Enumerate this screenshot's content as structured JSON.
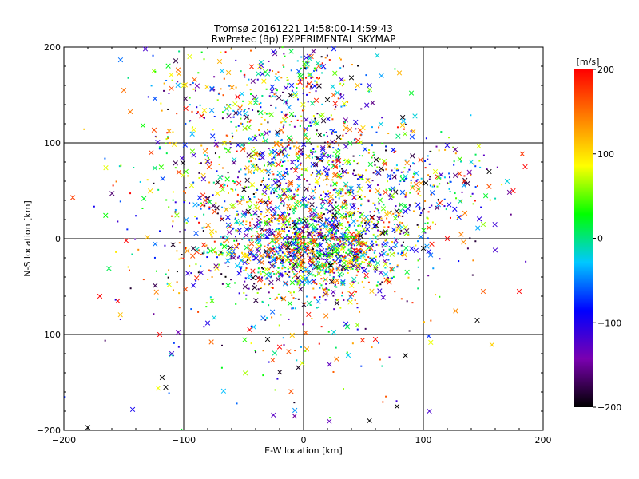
{
  "chart_data": {
    "type": "scatter",
    "title": "Tromsø 20161221 14:58:00-14:59:43",
    "subtitle": "RwPretec (8p) EXPERIMENTAL SKYMAP",
    "xlabel": "E-W location [km]",
    "ylabel": "N-S location [km]",
    "xlim": [
      -200,
      200
    ],
    "ylim": [
      -200,
      200
    ],
    "x_ticks": [
      "−200",
      "−100",
      "0",
      "100",
      "200"
    ],
    "y_ticks": [
      "−200",
      "−100",
      "0",
      "100",
      "200"
    ],
    "grid": true,
    "grid_lines": [
      -100,
      0,
      100
    ],
    "marker_types": [
      "x",
      "dot"
    ],
    "colorbar": {
      "label": "[m/s]",
      "range": [
        -200,
        200
      ],
      "ticks": [
        "−200",
        "−100",
        "0",
        "100",
        "200"
      ],
      "colors": [
        "#000000",
        "#7a00b0",
        "#0000ff",
        "#00c8ff",
        "#00ff00",
        "#ffff00",
        "#ff8000",
        "#ff0000"
      ]
    },
    "point_count_estimate": 3000,
    "points": [
      [
        -132,
        198,
        "x",
        -120
      ],
      [
        -104,
        172,
        "x",
        120
      ],
      [
        -95,
        190,
        "x",
        80
      ],
      [
        -70,
        185,
        "x",
        120
      ],
      [
        -25,
        195,
        "x",
        -100
      ],
      [
        5,
        188,
        "x",
        -10
      ],
      [
        12,
        183,
        "x",
        -10
      ],
      [
        -30,
        172,
        "x",
        0
      ],
      [
        -68,
        175,
        "x",
        -30
      ],
      [
        -100,
        160,
        "x",
        80
      ],
      [
        -125,
        175,
        "x",
        60
      ],
      [
        -150,
        155,
        "x",
        150
      ],
      [
        -85,
        128,
        "x",
        200
      ],
      [
        -40,
        142,
        "x",
        10
      ],
      [
        -10,
        160,
        "x",
        -80
      ],
      [
        20,
        145,
        "x",
        -200
      ],
      [
        40,
        168,
        "x",
        -200
      ],
      [
        65,
        170,
        "x",
        -40
      ],
      [
        80,
        173,
        "x",
        120
      ],
      [
        93,
        128,
        "x",
        -20
      ],
      [
        55,
        160,
        "x",
        -100
      ],
      [
        90,
        152,
        "x",
        20
      ],
      [
        -55,
        148,
        "x",
        200
      ],
      [
        -10,
        130,
        "x",
        30
      ],
      [
        25,
        150,
        "x",
        160
      ],
      [
        85,
        65,
        "x",
        -20
      ],
      [
        102,
        58,
        "x",
        -200
      ],
      [
        110,
        70,
        "x",
        80
      ],
      [
        140,
        80,
        "x",
        -20
      ],
      [
        155,
        70,
        "x",
        -200
      ],
      [
        170,
        60,
        "x",
        -20
      ],
      [
        185,
        75,
        "x",
        200
      ],
      [
        175,
        50,
        "x",
        200
      ],
      [
        150,
        15,
        "x",
        60
      ],
      [
        120,
        0,
        "x",
        200
      ],
      [
        100,
        -10,
        "x",
        -200
      ],
      [
        145,
        -85,
        "x",
        -200
      ],
      [
        150,
        -55,
        "x",
        160
      ],
      [
        180,
        -55,
        "x",
        200
      ],
      [
        160,
        -12,
        "x",
        -120
      ],
      [
        -170,
        -60,
        "x",
        200
      ],
      [
        -155,
        -65,
        "x",
        200
      ],
      [
        -148,
        -2,
        "x",
        200
      ],
      [
        -165,
        74,
        "x",
        80
      ],
      [
        -112,
        -48,
        "x",
        80
      ],
      [
        -120,
        -100,
        "x",
        200
      ],
      [
        -110,
        -120,
        "x",
        -120
      ],
      [
        -118,
        -145,
        "x",
        -200
      ],
      [
        -115,
        -155,
        "x",
        -200
      ],
      [
        -30,
        -105,
        "x",
        -200
      ],
      [
        -20,
        -113,
        "x",
        200
      ],
      [
        60,
        -105,
        "x",
        200
      ],
      [
        85,
        -122,
        "x",
        -200
      ],
      [
        78,
        -175,
        "x",
        -200
      ],
      [
        105,
        -180,
        "x",
        -120
      ],
      [
        55,
        -190,
        "x",
        -200
      ],
      [
        -180,
        -197,
        "x",
        -200
      ],
      [
        -80,
        -88,
        "x",
        -100
      ],
      [
        45,
        -90,
        "x",
        60
      ],
      [
        -45,
        -95,
        "x",
        200
      ]
    ],
    "clusters": [
      {
        "cx": 5,
        "cy": -15,
        "sx": 38,
        "sy": 22,
        "n": 1100
      },
      {
        "cx": 10,
        "cy": 45,
        "sx": 55,
        "sy": 40,
        "n": 1100
      },
      {
        "cx": -20,
        "cy": 115,
        "sx": 40,
        "sy": 35,
        "n": 250
      },
      {
        "cx": -60,
        "cy": 165,
        "sx": 40,
        "sy": 25,
        "n": 120
      },
      {
        "cx": 5,
        "cy": 175,
        "sx": 20,
        "sy": 15,
        "n": 80
      },
      {
        "cx": 110,
        "cy": 55,
        "sx": 30,
        "sy": 25,
        "n": 120
      },
      {
        "cx": 0,
        "cy": -90,
        "sx": 60,
        "sy": 50,
        "n": 150
      },
      {
        "cx": -100,
        "cy": 20,
        "sx": 40,
        "sy": 60,
        "n": 120
      }
    ]
  }
}
